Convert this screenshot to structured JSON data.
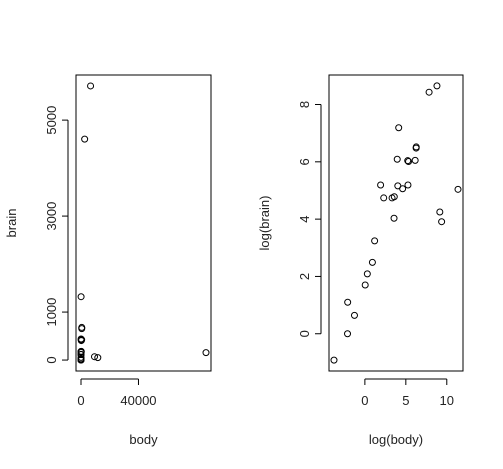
{
  "chart_data": [
    {
      "type": "scatter",
      "x_label": "body",
      "y_label": "brain",
      "x": [
        1.35,
        465,
        36.33,
        27.66,
        1.04,
        11700,
        2547,
        187.1,
        521,
        10,
        3.3,
        529,
        207,
        62,
        6654,
        9400,
        6.8,
        35,
        0.12,
        0.023,
        2.5,
        55.5,
        100,
        52.16,
        0.28,
        87000,
        0.122,
        192
      ],
      "values": [
        8.1,
        423,
        119.5,
        115,
        5.5,
        50,
        4603,
        419,
        655,
        115,
        25.6,
        680,
        406,
        1320,
        5712,
        70,
        179,
        56,
        1,
        0.4,
        12.1,
        175,
        157,
        440,
        1.9,
        154.5,
        3,
        180
      ],
      "xlim": [
        -3480,
        90480
      ],
      "ylim": [
        -228,
        5940
      ],
      "xticks": [
        0,
        40000
      ],
      "yticks": [
        0,
        1000,
        3000,
        5000
      ],
      "color": "#000000"
    },
    {
      "type": "scatter",
      "x_label": "log(body)",
      "y_label": "log(brain)",
      "x": [
        0.3,
        6.14,
        3.59,
        3.32,
        0.04,
        9.37,
        7.84,
        5.23,
        6.26,
        2.3,
        1.19,
        6.27,
        5.33,
        4.13,
        8.8,
        9.15,
        1.92,
        3.56,
        -2.12,
        -3.77,
        0.92,
        4.02,
        4.61,
        3.95,
        -1.27,
        11.37,
        -2.1,
        5.26
      ],
      "values": [
        2.09,
        6.05,
        4.78,
        4.74,
        1.7,
        3.91,
        8.43,
        6.04,
        6.48,
        4.74,
        3.24,
        6.52,
        6.01,
        7.19,
        8.65,
        4.25,
        5.19,
        4.03,
        0,
        -0.92,
        2.49,
        5.16,
        5.06,
        6.09,
        0.64,
        5.04,
        1.1,
        5.19
      ],
      "xlim": [
        -4.38,
        11.98
      ],
      "ylim": [
        -1.3,
        9.03
      ],
      "xticks": [
        0,
        5,
        10
      ],
      "yticks": [
        0,
        2,
        4,
        6,
        8
      ],
      "color": "#000000"
    }
  ]
}
